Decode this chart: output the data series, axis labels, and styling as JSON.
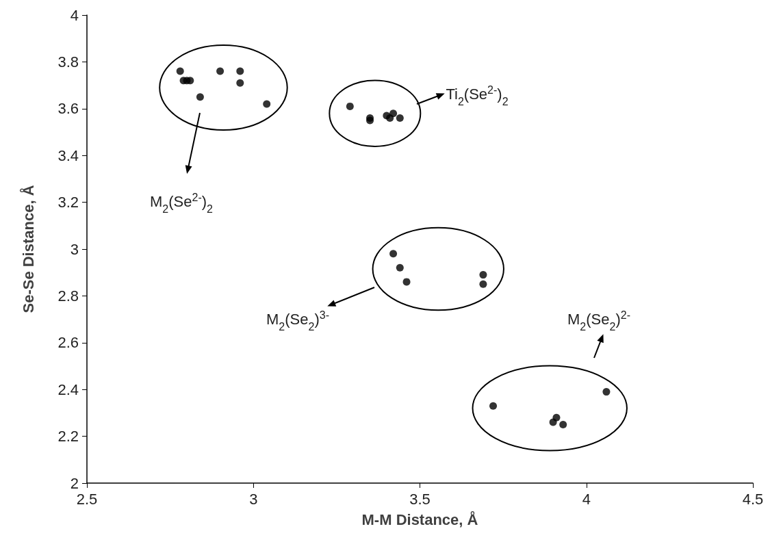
{
  "chart_data": {
    "type": "scatter",
    "xlabel": "M-M Distance, Å",
    "ylabel": "Se-Se Distance, Å",
    "xlim": [
      2.5,
      4.5
    ],
    "xticks": [
      2.5,
      3,
      3.5,
      4,
      4.5
    ],
    "ylim": [
      2,
      4
    ],
    "yticks": [
      2,
      2.2,
      2.4,
      2.6,
      2.8,
      3,
      3.2,
      3.4,
      3.6,
      3.8,
      4
    ],
    "grid": false,
    "marker": "circle",
    "series": [
      {
        "color": "#000000",
        "x": [
          2.78,
          2.79,
          2.8,
          2.81,
          2.9,
          2.96,
          2.96,
          2.84,
          3.04
        ],
        "values": [
          3.76,
          3.72,
          3.72,
          3.72,
          3.76,
          3.76,
          3.71,
          3.65,
          3.62
        ]
      },
      {
        "color": "#000000",
        "x": [
          3.29,
          3.35,
          3.35,
          3.4,
          3.41,
          3.42,
          3.44
        ],
        "values": [
          3.61,
          3.55,
          3.56,
          3.57,
          3.56,
          3.58,
          3.56
        ]
      },
      {
        "color": "#000000",
        "x": [
          3.42,
          3.44,
          3.46,
          3.69,
          3.69
        ],
        "values": [
          2.98,
          2.92,
          2.86,
          2.89,
          2.85
        ]
      },
      {
        "color": "#000000",
        "x": [
          3.72,
          4.06,
          3.91,
          3.9,
          3.93
        ],
        "values": [
          2.33,
          2.39,
          2.28,
          2.26,
          2.25
        ]
      }
    ],
    "annotations": [
      "M$_{2}$(Se$^{2-}$)$_{2}$",
      "Ti$_{2}$(Se$^{2-}$)$_{2}$",
      "M$_{2}$(Se$_{2}$)$^{3-}$",
      "M$_{2}$(Se$_{2}$)$^{2-}$"
    ]
  }
}
